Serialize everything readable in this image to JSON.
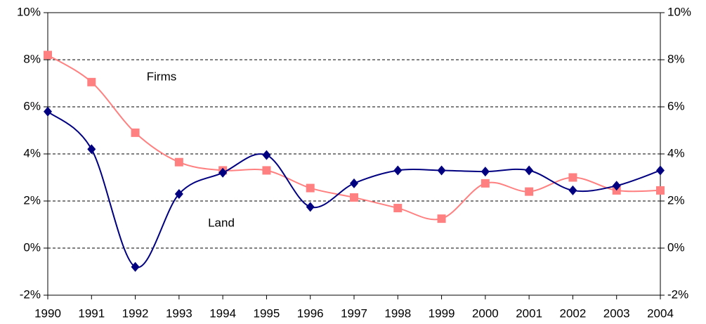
{
  "chart_data": {
    "type": "line",
    "categories": [
      "1990",
      "1991",
      "1992",
      "1993",
      "1994",
      "1995",
      "1996",
      "1997",
      "1998",
      "1999",
      "2000",
      "2001",
      "2002",
      "2003",
      "2004"
    ],
    "series": [
      {
        "name": "Firms",
        "color": "#ff8080",
        "marker": "square",
        "values": [
          8.2,
          7.05,
          4.9,
          3.65,
          3.3,
          3.3,
          2.55,
          2.15,
          1.7,
          1.25,
          2.75,
          2.4,
          3.0,
          2.45,
          2.45
        ]
      },
      {
        "name": "Land",
        "color": "#000080",
        "marker": "diamond",
        "values": [
          5.8,
          4.2,
          -0.8,
          2.3,
          3.2,
          3.95,
          1.75,
          2.75,
          3.3,
          3.3,
          3.25,
          3.3,
          2.45,
          2.65,
          3.3
        ]
      }
    ],
    "ylim": [
      -2,
      10
    ],
    "yticks": [
      {
        "value": -2,
        "label": "-2%"
      },
      {
        "value": 0,
        "label": "0%"
      },
      {
        "value": 2,
        "label": "2%"
      },
      {
        "value": 4,
        "label": "4%"
      },
      {
        "value": 6,
        "label": "6%"
      },
      {
        "value": 8,
        "label": "8%"
      },
      {
        "value": 10,
        "label": "10%"
      }
    ],
    "y2lim": [
      -2,
      10
    ],
    "y2ticks": [
      {
        "value": -2,
        "label": "-2%"
      },
      {
        "value": 0,
        "label": "0%"
      },
      {
        "value": 2,
        "label": "2%"
      },
      {
        "value": 4,
        "label": "4%"
      },
      {
        "value": 6,
        "label": "6%"
      },
      {
        "value": 8,
        "label": "8%"
      },
      {
        "value": 10,
        "label": "10%"
      }
    ],
    "grid": true
  }
}
